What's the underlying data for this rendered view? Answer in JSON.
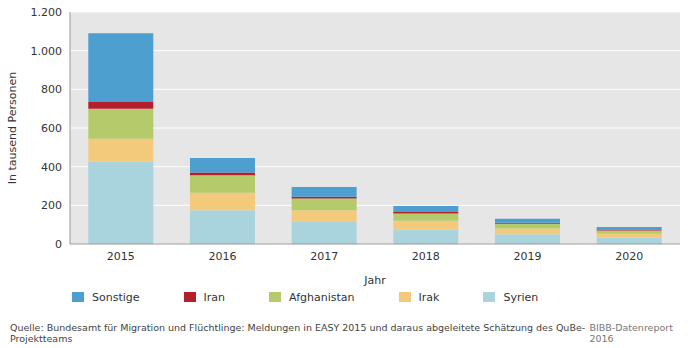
{
  "chart_data": {
    "type": "bar",
    "x_label": "Jahr",
    "y_label": "In tausend Personen",
    "categories": [
      "2015",
      "2016",
      "2017",
      "2018",
      "2019",
      "2020"
    ],
    "series": [
      {
        "name": "Syrien",
        "color": "#a9d3dd",
        "values": [
          425,
          175,
          115,
          75,
          50,
          33
        ]
      },
      {
        "name": "Irak",
        "color": "#f3c97c",
        "values": [
          120,
          90,
          60,
          45,
          30,
          20
        ]
      },
      {
        "name": "Afghanistan",
        "color": "#b4ca6b",
        "values": [
          155,
          90,
          60,
          38,
          25,
          17
        ]
      },
      {
        "name": "Iran",
        "color": "#b3202c",
        "values": [
          35,
          15,
          10,
          7,
          5,
          3
        ]
      },
      {
        "name": "Sonstige",
        "color": "#4d9fcf",
        "values": [
          355,
          75,
          50,
          32,
          20,
          15
        ]
      }
    ],
    "ylim": [
      0,
      1200
    ],
    "yticks": [
      0,
      200,
      400,
      600,
      800,
      {
        "value": 1000,
        "label": "1.000"
      },
      {
        "value": 1200,
        "label": "1.200"
      }
    ],
    "grid": true,
    "stacked": true,
    "legend": "bottom",
    "source": "Quelle: Bundesamt für Migration und Flüchtlinge: Meldungen in EASY 2015 und daraus abgeleitete Schätzung des QuBe-Projektteams",
    "credit": "BIBB-Datenreport 2016"
  }
}
